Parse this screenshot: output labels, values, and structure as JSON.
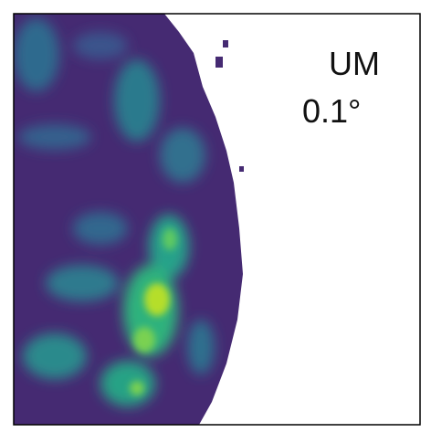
{
  "label": {
    "model": "UM",
    "resolution": "0.1°"
  }
}
